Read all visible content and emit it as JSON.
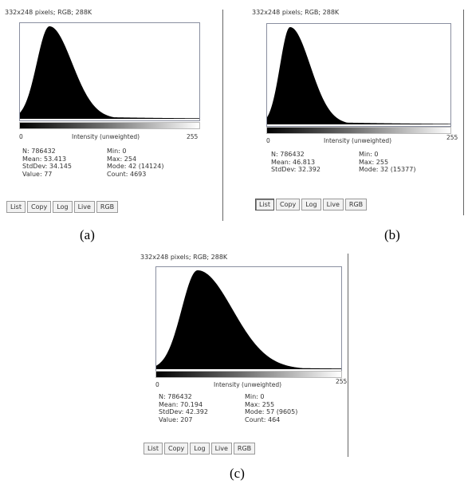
{
  "panels": {
    "a": {
      "title": "332x248 pixels; RGB; 288K",
      "axis_min": "0",
      "axis_label": "Intensity (unweighted)",
      "axis_max": "255",
      "stats_left": [
        "N: 786432",
        "Mean: 53.413",
        "StdDev: 34.145",
        "Value: 77"
      ],
      "stats_right": [
        "Min: 0",
        "Max: 254",
        "Mode: 42 (14124)",
        "Count: 4693"
      ],
      "caption": "(a)",
      "peak": 42,
      "spread_left": 18,
      "spread_right": 32
    },
    "b": {
      "title": "332x248 pixels; RGB; 288K",
      "axis_min": "0",
      "axis_label": "Intensity (unweighted)",
      "axis_max": "255",
      "stats_left": [
        "N: 786432",
        "Mean: 46.813",
        "StdDev: 32.392"
      ],
      "stats_right": [
        "Min: 0",
        "Max: 255",
        "Mode: 32 (15377)"
      ],
      "caption": "(b)",
      "peak": 32,
      "spread_left": 14,
      "spread_right": 28
    },
    "c": {
      "title": "332x248 pixels; RGB; 288K",
      "axis_min": "0",
      "axis_label": "Intensity (unweighted)",
      "axis_max": "255",
      "stats_left": [
        "N: 786432",
        "Mean: 70.194",
        "StdDev: 42.392",
        "Value: 207"
      ],
      "stats_right": [
        "Min: 0",
        "Max: 255",
        "Mode: 57 (9605)",
        "Count: 464"
      ],
      "caption": "(c)",
      "peak": 57,
      "spread_left": 22,
      "spread_right": 48
    }
  },
  "buttons": {
    "list": "List",
    "copy": "Copy",
    "log": "Log",
    "live": "Live",
    "rgb": "RGB"
  }
}
